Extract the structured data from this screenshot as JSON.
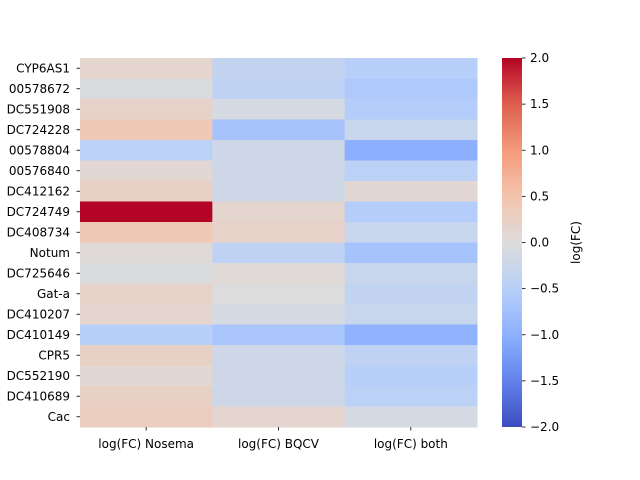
{
  "chart_data": {
    "type": "heatmap",
    "title": "",
    "xlabel": "",
    "ylabel": "",
    "columns": [
      "log(FC) Nosema",
      "log(FC) BQCV",
      "log(FC) both"
    ],
    "rows": [
      "CYP6AS1",
      "00578672",
      "DC551908",
      "DC724228",
      "00578804",
      "00576840",
      "DC412162",
      "DC724749",
      "DC408734",
      "Notum",
      "DC725646",
      "Gat-a",
      "DC410207",
      "DC410149",
      "CPR5",
      "DC552190",
      "DC410689",
      "Cac"
    ],
    "values": [
      [
        0.15,
        -0.35,
        -0.5
      ],
      [
        -0.05,
        -0.4,
        -0.6
      ],
      [
        0.2,
        -0.1,
        -0.55
      ],
      [
        0.4,
        -0.7,
        -0.3
      ],
      [
        -0.45,
        -0.2,
        -1.0
      ],
      [
        0.1,
        -0.2,
        -0.45
      ],
      [
        0.25,
        -0.2,
        0.1
      ],
      [
        2.0,
        0.15,
        -0.55
      ],
      [
        0.4,
        0.2,
        -0.3
      ],
      [
        0.05,
        -0.4,
        -0.7
      ],
      [
        -0.05,
        0.05,
        -0.3
      ],
      [
        0.2,
        0.0,
        -0.35
      ],
      [
        0.15,
        -0.1,
        -0.3
      ],
      [
        -0.5,
        -0.65,
        -0.95
      ],
      [
        0.25,
        -0.2,
        -0.4
      ],
      [
        0.1,
        -0.2,
        -0.5
      ],
      [
        0.25,
        -0.2,
        -0.45
      ],
      [
        0.3,
        0.15,
        -0.1
      ]
    ],
    "colorbar": {
      "label": "log(FC)",
      "range": [
        -2.0,
        2.0
      ],
      "ticks": [
        "2.0",
        "1.5",
        "1.0",
        "0.5",
        "0.0",
        "−0.5",
        "−1.0",
        "−1.5",
        "−2.0"
      ],
      "tick_values": [
        2.0,
        1.5,
        1.0,
        0.5,
        0.0,
        -0.5,
        -1.0,
        -1.5,
        -2.0
      ],
      "colormap": "coolwarm"
    },
    "grid": false
  }
}
